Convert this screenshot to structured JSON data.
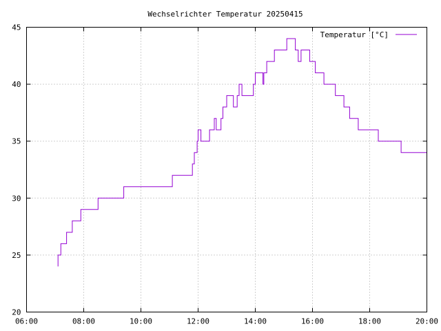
{
  "chart_data": {
    "type": "line",
    "title": "Wechselrichter Temperatur 20250415",
    "xlabel": "",
    "ylabel": "",
    "x_ticks": [
      "06:00",
      "08:00",
      "10:00",
      "12:00",
      "14:00",
      "16:00",
      "18:00",
      "20:00"
    ],
    "y_ticks": [
      20,
      25,
      30,
      35,
      40,
      45
    ],
    "xlim": [
      "06:00",
      "20:00"
    ],
    "ylim": [
      20,
      45
    ],
    "grid": true,
    "legend_position": "top-right",
    "series": [
      {
        "name": "Temperatur [°C]",
        "color": "#9400d3",
        "points": [
          [
            "07:06",
            24
          ],
          [
            "07:06",
            25
          ],
          [
            "07:12",
            25
          ],
          [
            "07:12",
            26
          ],
          [
            "07:24",
            26
          ],
          [
            "07:24",
            27
          ],
          [
            "07:36",
            27
          ],
          [
            "07:36",
            28
          ],
          [
            "07:54",
            28
          ],
          [
            "07:54",
            29
          ],
          [
            "08:30",
            29
          ],
          [
            "08:30",
            30
          ],
          [
            "09:24",
            30
          ],
          [
            "09:24",
            31
          ],
          [
            "11:06",
            31
          ],
          [
            "11:06",
            32
          ],
          [
            "11:48",
            32
          ],
          [
            "11:48",
            33
          ],
          [
            "11:52",
            33
          ],
          [
            "11:52",
            34
          ],
          [
            "11:58",
            34
          ],
          [
            "11:58",
            35
          ],
          [
            "12:00",
            35
          ],
          [
            "12:00",
            36
          ],
          [
            "12:06",
            36
          ],
          [
            "12:06",
            35
          ],
          [
            "12:24",
            35
          ],
          [
            "12:24",
            36
          ],
          [
            "12:34",
            36
          ],
          [
            "12:34",
            37
          ],
          [
            "12:38",
            37
          ],
          [
            "12:38",
            36
          ],
          [
            "12:48",
            36
          ],
          [
            "12:48",
            37
          ],
          [
            "12:52",
            37
          ],
          [
            "12:52",
            38
          ],
          [
            "13:00",
            38
          ],
          [
            "13:00",
            39
          ],
          [
            "13:14",
            39
          ],
          [
            "13:14",
            38
          ],
          [
            "13:22",
            38
          ],
          [
            "13:22",
            39
          ],
          [
            "13:26",
            39
          ],
          [
            "13:26",
            40
          ],
          [
            "13:32",
            40
          ],
          [
            "13:32",
            39
          ],
          [
            "13:56",
            39
          ],
          [
            "13:56",
            40
          ],
          [
            "14:00",
            40
          ],
          [
            "14:00",
            41
          ],
          [
            "14:16",
            41
          ],
          [
            "14:16",
            40
          ],
          [
            "14:18",
            40
          ],
          [
            "14:18",
            41
          ],
          [
            "14:24",
            41
          ],
          [
            "14:24",
            42
          ],
          [
            "14:40",
            42
          ],
          [
            "14:40",
            43
          ],
          [
            "15:06",
            43
          ],
          [
            "15:06",
            44
          ],
          [
            "15:24",
            44
          ],
          [
            "15:24",
            43
          ],
          [
            "15:30",
            43
          ],
          [
            "15:30",
            42
          ],
          [
            "15:36",
            42
          ],
          [
            "15:36",
            43
          ],
          [
            "15:54",
            43
          ],
          [
            "15:54",
            42
          ],
          [
            "16:06",
            42
          ],
          [
            "16:06",
            41
          ],
          [
            "16:24",
            41
          ],
          [
            "16:24",
            40
          ],
          [
            "16:48",
            40
          ],
          [
            "16:48",
            39
          ],
          [
            "17:06",
            39
          ],
          [
            "17:06",
            38
          ],
          [
            "17:18",
            38
          ],
          [
            "17:18",
            37
          ],
          [
            "17:36",
            37
          ],
          [
            "17:36",
            36
          ],
          [
            "18:18",
            36
          ],
          [
            "18:18",
            35
          ],
          [
            "19:06",
            35
          ],
          [
            "19:06",
            34
          ],
          [
            "20:00",
            34
          ]
        ]
      }
    ]
  }
}
